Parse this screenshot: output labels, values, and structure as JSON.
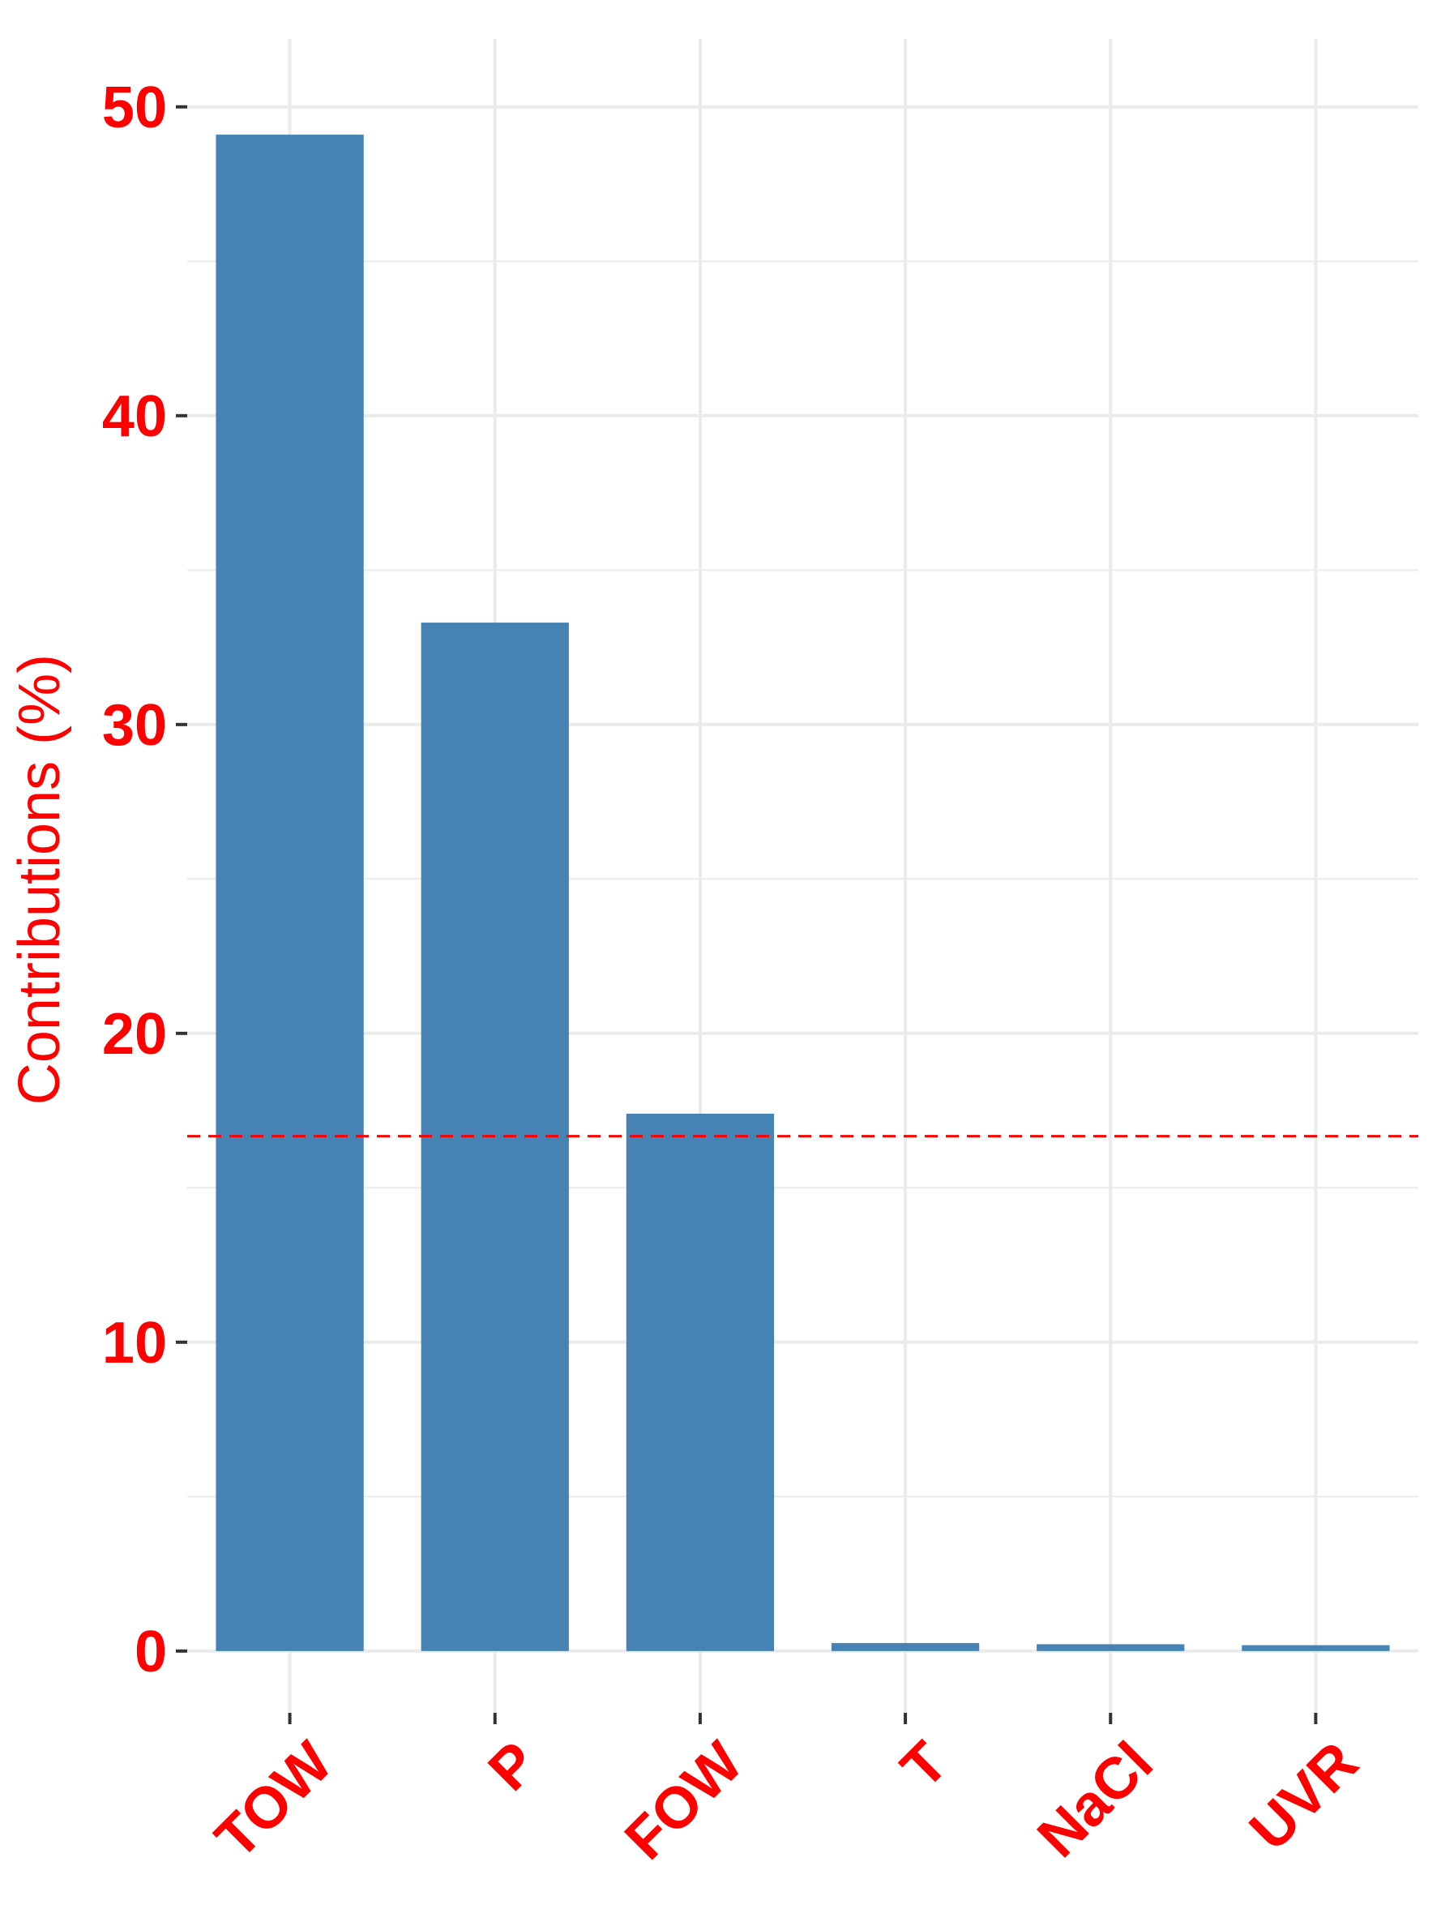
{
  "chart_data": {
    "type": "bar",
    "title": "",
    "xlabel": "",
    "ylabel": "Contributions (%)",
    "categories": [
      "TOW",
      "P",
      "FOW",
      "T",
      "NaCl",
      "UVR"
    ],
    "values": [
      49.1,
      33.3,
      17.4,
      0.26,
      0.22,
      0.19
    ],
    "ylim": [
      -2.0,
      52.2
    ],
    "yticks": [
      0,
      10,
      20,
      30,
      40,
      50
    ],
    "yticks_minor": [
      5,
      15,
      25,
      35,
      45
    ],
    "reference_line": {
      "value": 16.67,
      "style": "dashed"
    },
    "grid": true,
    "legend": "none",
    "colors": {
      "bar": "#4682b4",
      "text": "#ff0000",
      "reference_line": "#ff0000",
      "grid": "#ebebeb",
      "tick": "#333333"
    }
  }
}
